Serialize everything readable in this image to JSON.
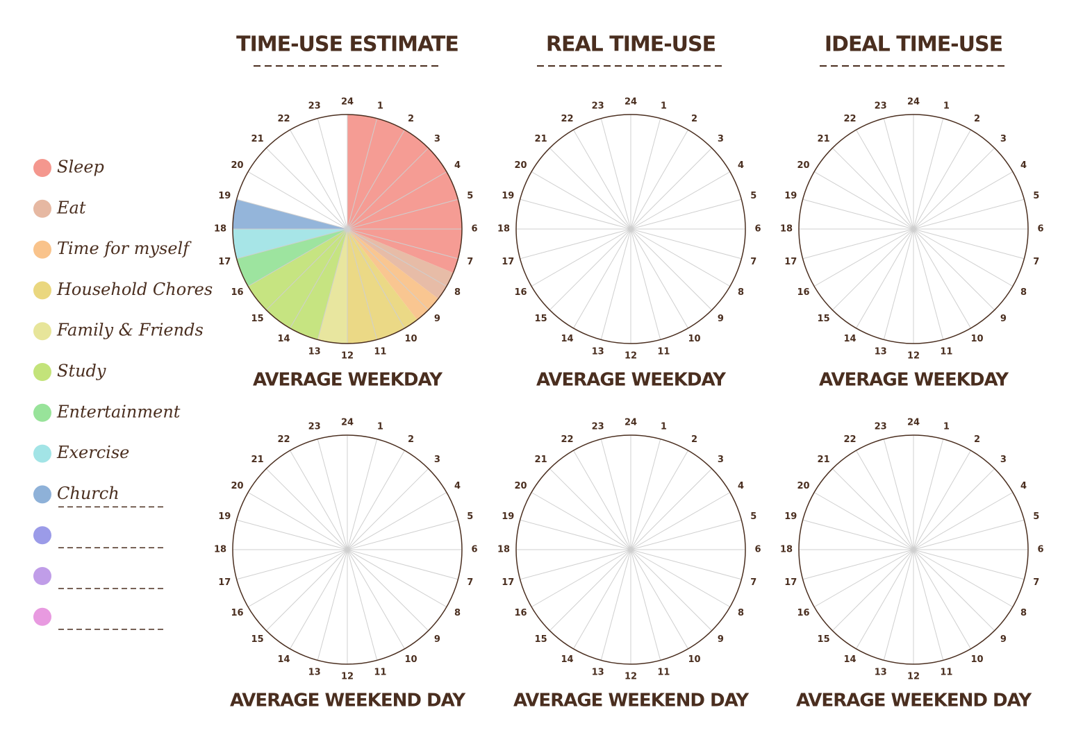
{
  "column_titles": [
    "TIME-USE ESTIMATE",
    "REAL TIME-USE",
    "IDEAL TIME-USE"
  ],
  "legend": [
    {
      "label": "Sleep",
      "color": "#f4978e"
    },
    {
      "label": "Eat",
      "color": "#e6b8a2"
    },
    {
      "label": "Time for myself",
      "color": "#f9c38b"
    },
    {
      "label": "Household Chores",
      "color": "#ead77f"
    },
    {
      "label": "Family & Friends",
      "color": "#e7e59a"
    },
    {
      "label": "Study",
      "color": "#c3e37a"
    },
    {
      "label": "Entertainment",
      "color": "#98e39a"
    },
    {
      "label": "Exercise",
      "color": "#a2e4e6"
    },
    {
      "label": "Church",
      "color": "#8eb1d8"
    },
    {
      "color": "#9b9be8"
    },
    {
      "color": "#c09de8"
    },
    {
      "color": "#e89ae0"
    }
  ],
  "chart_data": [
    {
      "type": "pie",
      "title": "AVERAGE WEEKDAY",
      "values": [
        7.5,
        1,
        1,
        2.5,
        1,
        3,
        1,
        1,
        1
      ],
      "ticks": [
        1,
        2,
        3,
        4,
        5,
        6,
        7,
        8,
        9,
        10,
        11,
        12,
        13,
        14,
        15,
        16,
        17,
        18,
        19,
        20,
        21,
        22,
        23,
        24
      ]
    },
    {
      "type": "pie",
      "title": "AVERAGE WEEKDAY",
      "ticks": [
        1,
        2,
        3,
        4,
        5,
        6,
        7,
        8,
        9,
        10,
        11,
        12,
        13,
        14,
        15,
        16,
        17,
        18,
        19,
        20,
        21,
        22,
        23,
        24
      ]
    },
    {
      "type": "pie",
      "title": "AVERAGE WEEKDAY",
      "ticks": [
        1,
        2,
        3,
        4,
        5,
        6,
        7,
        8,
        9,
        10,
        11,
        12,
        13,
        14,
        15,
        16,
        17,
        18,
        19,
        20,
        21,
        22,
        23,
        24
      ]
    },
    {
      "type": "pie",
      "title": "AVERAGE WEEKEND DAY",
      "ticks": [
        1,
        2,
        3,
        4,
        5,
        6,
        7,
        8,
        9,
        10,
        11,
        12,
        13,
        14,
        15,
        16,
        17,
        18,
        19,
        20,
        21,
        22,
        23,
        24
      ]
    },
    {
      "type": "pie",
      "title": "AVERAGE WEEKEND DAY",
      "ticks": [
        1,
        2,
        3,
        4,
        5,
        6,
        7,
        8,
        9,
        10,
        11,
        12,
        13,
        14,
        15,
        16,
        17,
        18,
        19,
        20,
        21,
        22,
        23,
        24
      ]
    },
    {
      "type": "pie",
      "title": "AVERAGE WEEKEND DAY",
      "ticks": [
        1,
        2,
        3,
        4,
        5,
        6,
        7,
        8,
        9,
        10,
        11,
        12,
        13,
        14,
        15,
        16,
        17,
        18,
        19,
        20,
        21,
        22,
        23,
        24
      ]
    }
  ]
}
